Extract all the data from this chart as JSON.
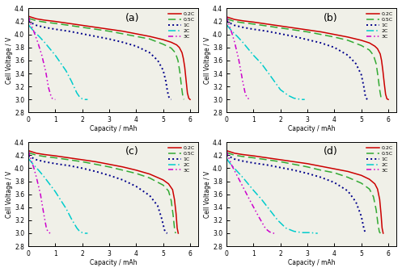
{
  "subplots": [
    "(a)",
    "(b)",
    "(c)",
    "(d)"
  ],
  "ylabel": "Cell Voltage / V",
  "xlabel": "Capacity / mAh",
  "ylim": [
    2.8,
    4.4
  ],
  "xlim": [
    0,
    6.3
  ],
  "yticks": [
    2.8,
    3.0,
    3.2,
    3.4,
    3.6,
    3.8,
    4.0,
    4.2,
    4.4
  ],
  "xticks": [
    0,
    1,
    2,
    3,
    4,
    5,
    6
  ],
  "legend_labels": [
    "0.2C",
    "0.5C",
    "1C",
    "2C",
    "3C"
  ],
  "line_colors": [
    "#cc0000",
    "#33aa33",
    "#00008b",
    "#00cccc",
    "#cc00cc"
  ],
  "bg_color": "#f0f0e8",
  "curves": {
    "a": {
      "c02": {
        "x": [
          0.0,
          0.3,
          0.6,
          1.0,
          1.5,
          2.0,
          2.5,
          3.0,
          3.5,
          4.0,
          4.5,
          5.0,
          5.3,
          5.5,
          5.6,
          5.7,
          5.75,
          5.8,
          5.85,
          5.9,
          5.95,
          6.0
        ],
        "y": [
          4.28,
          4.24,
          4.22,
          4.2,
          4.17,
          4.14,
          4.11,
          4.08,
          4.05,
          4.01,
          3.97,
          3.92,
          3.88,
          3.84,
          3.8,
          3.72,
          3.63,
          3.5,
          3.3,
          3.1,
          3.02,
          3.0
        ]
      },
      "c05": {
        "x": [
          0.0,
          0.3,
          0.6,
          1.0,
          1.5,
          2.0,
          2.5,
          3.0,
          3.5,
          4.0,
          4.5,
          5.0,
          5.3,
          5.45,
          5.55,
          5.62,
          5.68,
          5.73,
          5.77
        ],
        "y": [
          4.25,
          4.21,
          4.19,
          4.17,
          4.14,
          4.11,
          4.08,
          4.05,
          4.01,
          3.97,
          3.93,
          3.85,
          3.79,
          3.72,
          3.6,
          3.42,
          3.2,
          3.05,
          3.0
        ]
      },
      "c1": {
        "x": [
          0.0,
          0.3,
          0.6,
          1.0,
          1.5,
          2.0,
          2.5,
          3.0,
          3.5,
          4.0,
          4.5,
          4.8,
          5.0,
          5.1,
          5.15,
          5.2,
          5.25,
          5.3
        ],
        "y": [
          4.2,
          4.14,
          4.11,
          4.08,
          4.05,
          4.01,
          3.97,
          3.93,
          3.88,
          3.82,
          3.72,
          3.6,
          3.45,
          3.28,
          3.15,
          3.05,
          3.01,
          3.0
        ]
      },
      "c2": {
        "x": [
          0.0,
          0.1,
          0.2,
          0.4,
          0.6,
          0.8,
          1.0,
          1.2,
          1.4,
          1.6,
          1.8,
          1.9,
          2.0,
          2.1,
          2.15,
          2.2
        ],
        "y": [
          4.15,
          4.1,
          4.05,
          3.97,
          3.88,
          3.78,
          3.68,
          3.56,
          3.44,
          3.28,
          3.1,
          3.04,
          3.01,
          3.0,
          3.0,
          3.0
        ]
      },
      "c3": {
        "x": [
          0.0,
          0.05,
          0.1,
          0.2,
          0.35,
          0.5,
          0.65,
          0.75,
          0.85,
          0.9,
          0.95,
          1.0
        ],
        "y": [
          4.28,
          4.22,
          4.15,
          4.05,
          3.88,
          3.68,
          3.42,
          3.18,
          3.04,
          3.01,
          3.0,
          3.0
        ]
      }
    },
    "b": {
      "c02": {
        "x": [
          0.0,
          0.3,
          0.6,
          1.0,
          1.5,
          2.0,
          2.5,
          3.0,
          3.5,
          4.0,
          4.5,
          5.0,
          5.3,
          5.5,
          5.6,
          5.7,
          5.75,
          5.8,
          5.85,
          5.9,
          5.95,
          6.0
        ],
        "y": [
          4.27,
          4.23,
          4.21,
          4.19,
          4.16,
          4.13,
          4.1,
          4.07,
          4.04,
          4.0,
          3.96,
          3.91,
          3.87,
          3.82,
          3.78,
          3.7,
          3.6,
          3.44,
          3.25,
          3.08,
          3.01,
          3.0
        ]
      },
      "c05": {
        "x": [
          0.0,
          0.3,
          0.6,
          1.0,
          1.5,
          2.0,
          2.5,
          3.0,
          3.5,
          4.0,
          4.5,
          5.0,
          5.3,
          5.45,
          5.55,
          5.62,
          5.68,
          5.73,
          5.77
        ],
        "y": [
          4.24,
          4.2,
          4.18,
          4.16,
          4.13,
          4.1,
          4.07,
          4.04,
          4.0,
          3.96,
          3.91,
          3.83,
          3.76,
          3.68,
          3.55,
          3.35,
          3.15,
          3.03,
          3.0
        ]
      },
      "c1": {
        "x": [
          0.0,
          0.3,
          0.6,
          1.0,
          1.5,
          2.0,
          2.5,
          3.0,
          3.5,
          4.0,
          4.5,
          4.8,
          5.0,
          5.1,
          5.15,
          5.2,
          5.25
        ],
        "y": [
          4.2,
          4.14,
          4.11,
          4.08,
          4.05,
          4.01,
          3.97,
          3.92,
          3.87,
          3.8,
          3.68,
          3.55,
          3.38,
          3.18,
          3.05,
          3.01,
          3.0
        ]
      },
      "c2": {
        "x": [
          0.0,
          0.1,
          0.2,
          0.4,
          0.6,
          0.8,
          1.0,
          1.3,
          1.6,
          2.0,
          2.3,
          2.5,
          2.65,
          2.75,
          2.83,
          2.9
        ],
        "y": [
          4.15,
          4.1,
          4.05,
          3.97,
          3.88,
          3.78,
          3.68,
          3.55,
          3.38,
          3.15,
          3.06,
          3.02,
          3.01,
          3.0,
          3.0,
          3.0
        ]
      },
      "c3": {
        "x": [
          0.0,
          0.05,
          0.1,
          0.2,
          0.3,
          0.45,
          0.6,
          0.7,
          0.78,
          0.83,
          0.87
        ],
        "y": [
          4.28,
          4.21,
          4.14,
          4.02,
          3.88,
          3.62,
          3.28,
          3.08,
          3.02,
          3.01,
          3.0
        ]
      }
    },
    "c": {
      "c02": {
        "x": [
          0.0,
          0.3,
          0.6,
          1.0,
          1.5,
          2.0,
          2.5,
          3.0,
          3.5,
          4.0,
          4.5,
          5.0,
          5.2,
          5.35,
          5.42,
          5.48,
          5.52,
          5.56
        ],
        "y": [
          4.27,
          4.23,
          4.21,
          4.19,
          4.16,
          4.13,
          4.1,
          4.06,
          4.02,
          3.97,
          3.91,
          3.82,
          3.76,
          3.67,
          3.52,
          3.3,
          3.08,
          3.0
        ]
      },
      "c05": {
        "x": [
          0.0,
          0.3,
          0.6,
          1.0,
          1.5,
          2.0,
          2.5,
          3.0,
          3.5,
          4.0,
          4.5,
          5.0,
          5.2,
          5.3,
          5.37,
          5.42,
          5.46
        ],
        "y": [
          4.24,
          4.2,
          4.18,
          4.16,
          4.13,
          4.1,
          4.06,
          4.02,
          3.97,
          3.92,
          3.85,
          3.74,
          3.65,
          3.5,
          3.28,
          3.08,
          3.0
        ]
      },
      "c1": {
        "x": [
          0.0,
          0.3,
          0.6,
          1.0,
          1.5,
          2.0,
          2.5,
          3.0,
          3.5,
          4.0,
          4.5,
          4.8,
          4.95,
          5.05,
          5.1,
          5.15
        ],
        "y": [
          4.19,
          4.13,
          4.1,
          4.07,
          4.04,
          4.0,
          3.95,
          3.89,
          3.82,
          3.72,
          3.58,
          3.42,
          3.22,
          3.05,
          3.01,
          3.0
        ]
      },
      "c2": {
        "x": [
          0.0,
          0.1,
          0.2,
          0.4,
          0.6,
          0.8,
          1.0,
          1.2,
          1.4,
          1.6,
          1.8,
          1.9,
          2.0,
          2.1,
          2.15,
          2.2
        ],
        "y": [
          4.15,
          4.1,
          4.05,
          3.96,
          3.86,
          3.75,
          3.64,
          3.51,
          3.38,
          3.22,
          3.08,
          3.03,
          3.01,
          3.0,
          3.0,
          3.0
        ]
      },
      "c3": {
        "x": [
          0.0,
          0.05,
          0.1,
          0.2,
          0.3,
          0.45,
          0.58,
          0.67,
          0.73,
          0.77,
          0.81
        ],
        "y": [
          4.27,
          4.2,
          4.13,
          4.01,
          3.86,
          3.6,
          3.28,
          3.08,
          3.02,
          3.01,
          3.0
        ]
      }
    },
    "d": {
      "c02": {
        "x": [
          0.0,
          0.3,
          0.6,
          1.0,
          1.5,
          2.0,
          2.5,
          3.0,
          3.5,
          4.0,
          4.5,
          5.0,
          5.3,
          5.5,
          5.6,
          5.68,
          5.73,
          5.77,
          5.81
        ],
        "y": [
          4.27,
          4.23,
          4.21,
          4.19,
          4.16,
          4.13,
          4.1,
          4.07,
          4.03,
          3.99,
          3.95,
          3.89,
          3.83,
          3.76,
          3.68,
          3.52,
          3.3,
          3.08,
          3.0
        ]
      },
      "c05": {
        "x": [
          0.0,
          0.3,
          0.6,
          1.0,
          1.5,
          2.0,
          2.5,
          3.0,
          3.5,
          4.0,
          4.5,
          5.0,
          5.3,
          5.45,
          5.55,
          5.62,
          5.67,
          5.71
        ],
        "y": [
          4.24,
          4.2,
          4.18,
          4.16,
          4.13,
          4.1,
          4.06,
          4.02,
          3.97,
          3.93,
          3.86,
          3.77,
          3.68,
          3.56,
          3.36,
          3.13,
          3.02,
          3.0
        ]
      },
      "c1": {
        "x": [
          0.0,
          0.3,
          0.6,
          1.0,
          1.5,
          2.0,
          2.5,
          3.0,
          3.5,
          4.0,
          4.5,
          4.8,
          5.0,
          5.1,
          5.15,
          5.2
        ],
        "y": [
          4.2,
          4.14,
          4.11,
          4.08,
          4.05,
          4.01,
          3.97,
          3.92,
          3.86,
          3.78,
          3.65,
          3.48,
          3.26,
          3.06,
          3.01,
          3.0
        ]
      },
      "c2": {
        "x": [
          0.0,
          0.1,
          0.2,
          0.4,
          0.6,
          0.8,
          1.0,
          1.3,
          1.6,
          1.9,
          2.2,
          2.5,
          2.8,
          3.0,
          3.15,
          3.25,
          3.32,
          3.38
        ],
        "y": [
          4.15,
          4.09,
          4.04,
          3.95,
          3.86,
          3.76,
          3.66,
          3.52,
          3.36,
          3.2,
          3.08,
          3.03,
          3.01,
          3.01,
          3.01,
          3.0,
          3.0,
          3.0
        ]
      },
      "c3": {
        "x": [
          0.0,
          0.05,
          0.1,
          0.2,
          0.4,
          0.6,
          0.9,
          1.2,
          1.45,
          1.6,
          1.7,
          1.75,
          1.8
        ],
        "y": [
          4.27,
          4.2,
          4.14,
          4.04,
          3.88,
          3.72,
          3.48,
          3.25,
          3.07,
          3.02,
          3.01,
          3.0,
          3.0
        ]
      }
    }
  }
}
